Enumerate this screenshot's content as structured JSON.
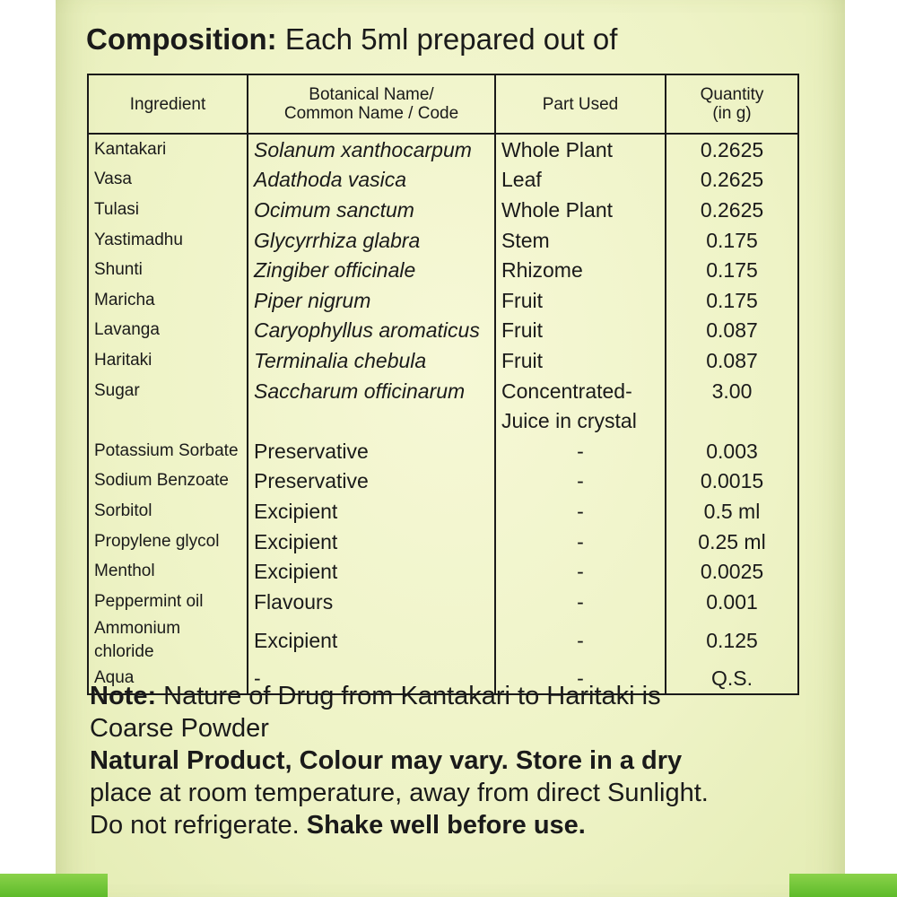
{
  "composition": {
    "label": "Composition:",
    "text": "Each 5ml prepared out of"
  },
  "table": {
    "headers": {
      "ingredient": "Ingredient",
      "botanical_line1": "Botanical Name/",
      "botanical_line2": "Common Name / Code",
      "part": "Part Used",
      "quantity_line1": "Quantity",
      "quantity_line2": "(in g)"
    },
    "rows": [
      {
        "ingredient": "Kantakari",
        "botanical": "Solanum xanthocarpum",
        "part": "Whole Plant",
        "quantity": "0.2625"
      },
      {
        "ingredient": "Vasa",
        "botanical": "Adathoda vasica",
        "part": "Leaf",
        "quantity": "0.2625"
      },
      {
        "ingredient": "Tulasi",
        "botanical": "Ocimum sanctum",
        "part": "Whole Plant",
        "quantity": "0.2625"
      },
      {
        "ingredient": "Yastimadhu",
        "botanical": "Glycyrrhiza glabra",
        "part": "Stem",
        "quantity": "0.175"
      },
      {
        "ingredient": "Shunti",
        "botanical": "Zingiber officinale",
        "part": "Rhizome",
        "quantity": "0.175"
      },
      {
        "ingredient": "Maricha",
        "botanical": "Piper nigrum",
        "part": "Fruit",
        "quantity": "0.175"
      },
      {
        "ingredient": "Lavanga",
        "botanical": "Caryophyllus aromaticus",
        "part": "Fruit",
        "quantity": "0.087"
      },
      {
        "ingredient": "Haritaki",
        "botanical": "Terminalia chebula",
        "part": "Fruit",
        "quantity": "0.087"
      },
      {
        "ingredient": "Sugar",
        "botanical": "Saccharum officinarum",
        "part": "Concentrated-",
        "quantity": "3.00"
      },
      {
        "ingredient": "",
        "botanical": "",
        "part": "Juice in crystal",
        "quantity": ""
      },
      {
        "ingredient": "Potassium Sorbate",
        "botanical": "Preservative",
        "part": "-",
        "quantity": "0.003"
      },
      {
        "ingredient": "Sodium Benzoate",
        "botanical": "Preservative",
        "part": "-",
        "quantity": "0.0015"
      },
      {
        "ingredient": "Sorbitol",
        "botanical": "Excipient",
        "part": "-",
        "quantity": "0.5 ml"
      },
      {
        "ingredient": "Propylene glycol",
        "botanical": "Excipient",
        "part": "-",
        "quantity": "0.25 ml"
      },
      {
        "ingredient": "Menthol",
        "botanical": "Excipient",
        "part": "-",
        "quantity": "0.0025"
      },
      {
        "ingredient": "Peppermint oil",
        "botanical": "Flavours",
        "part": "-",
        "quantity": "0.001"
      },
      {
        "ingredient": "Ammonium chloride",
        "botanical": "Excipient",
        "part": "-",
        "quantity": "0.125"
      },
      {
        "ingredient": "Aqua",
        "botanical": "-",
        "part": "-",
        "quantity": "Q.S."
      }
    ]
  },
  "note": {
    "label": "Note:",
    "line1": "Nature of Drug from Kantakari to Haritaki is",
    "line2": "Coarse Powder"
  },
  "storage": {
    "line1": "Natural Product, Colour may vary. Store in a dry",
    "line2": "place at room temperature, away from direct Sunlight.",
    "line3": "Do not refrigerate.",
    "line3_bold": "Shake well before use."
  },
  "colors": {
    "label_background": "#eef3c6",
    "green_band": "#5dbb2a",
    "text": "#1a1a1a"
  }
}
